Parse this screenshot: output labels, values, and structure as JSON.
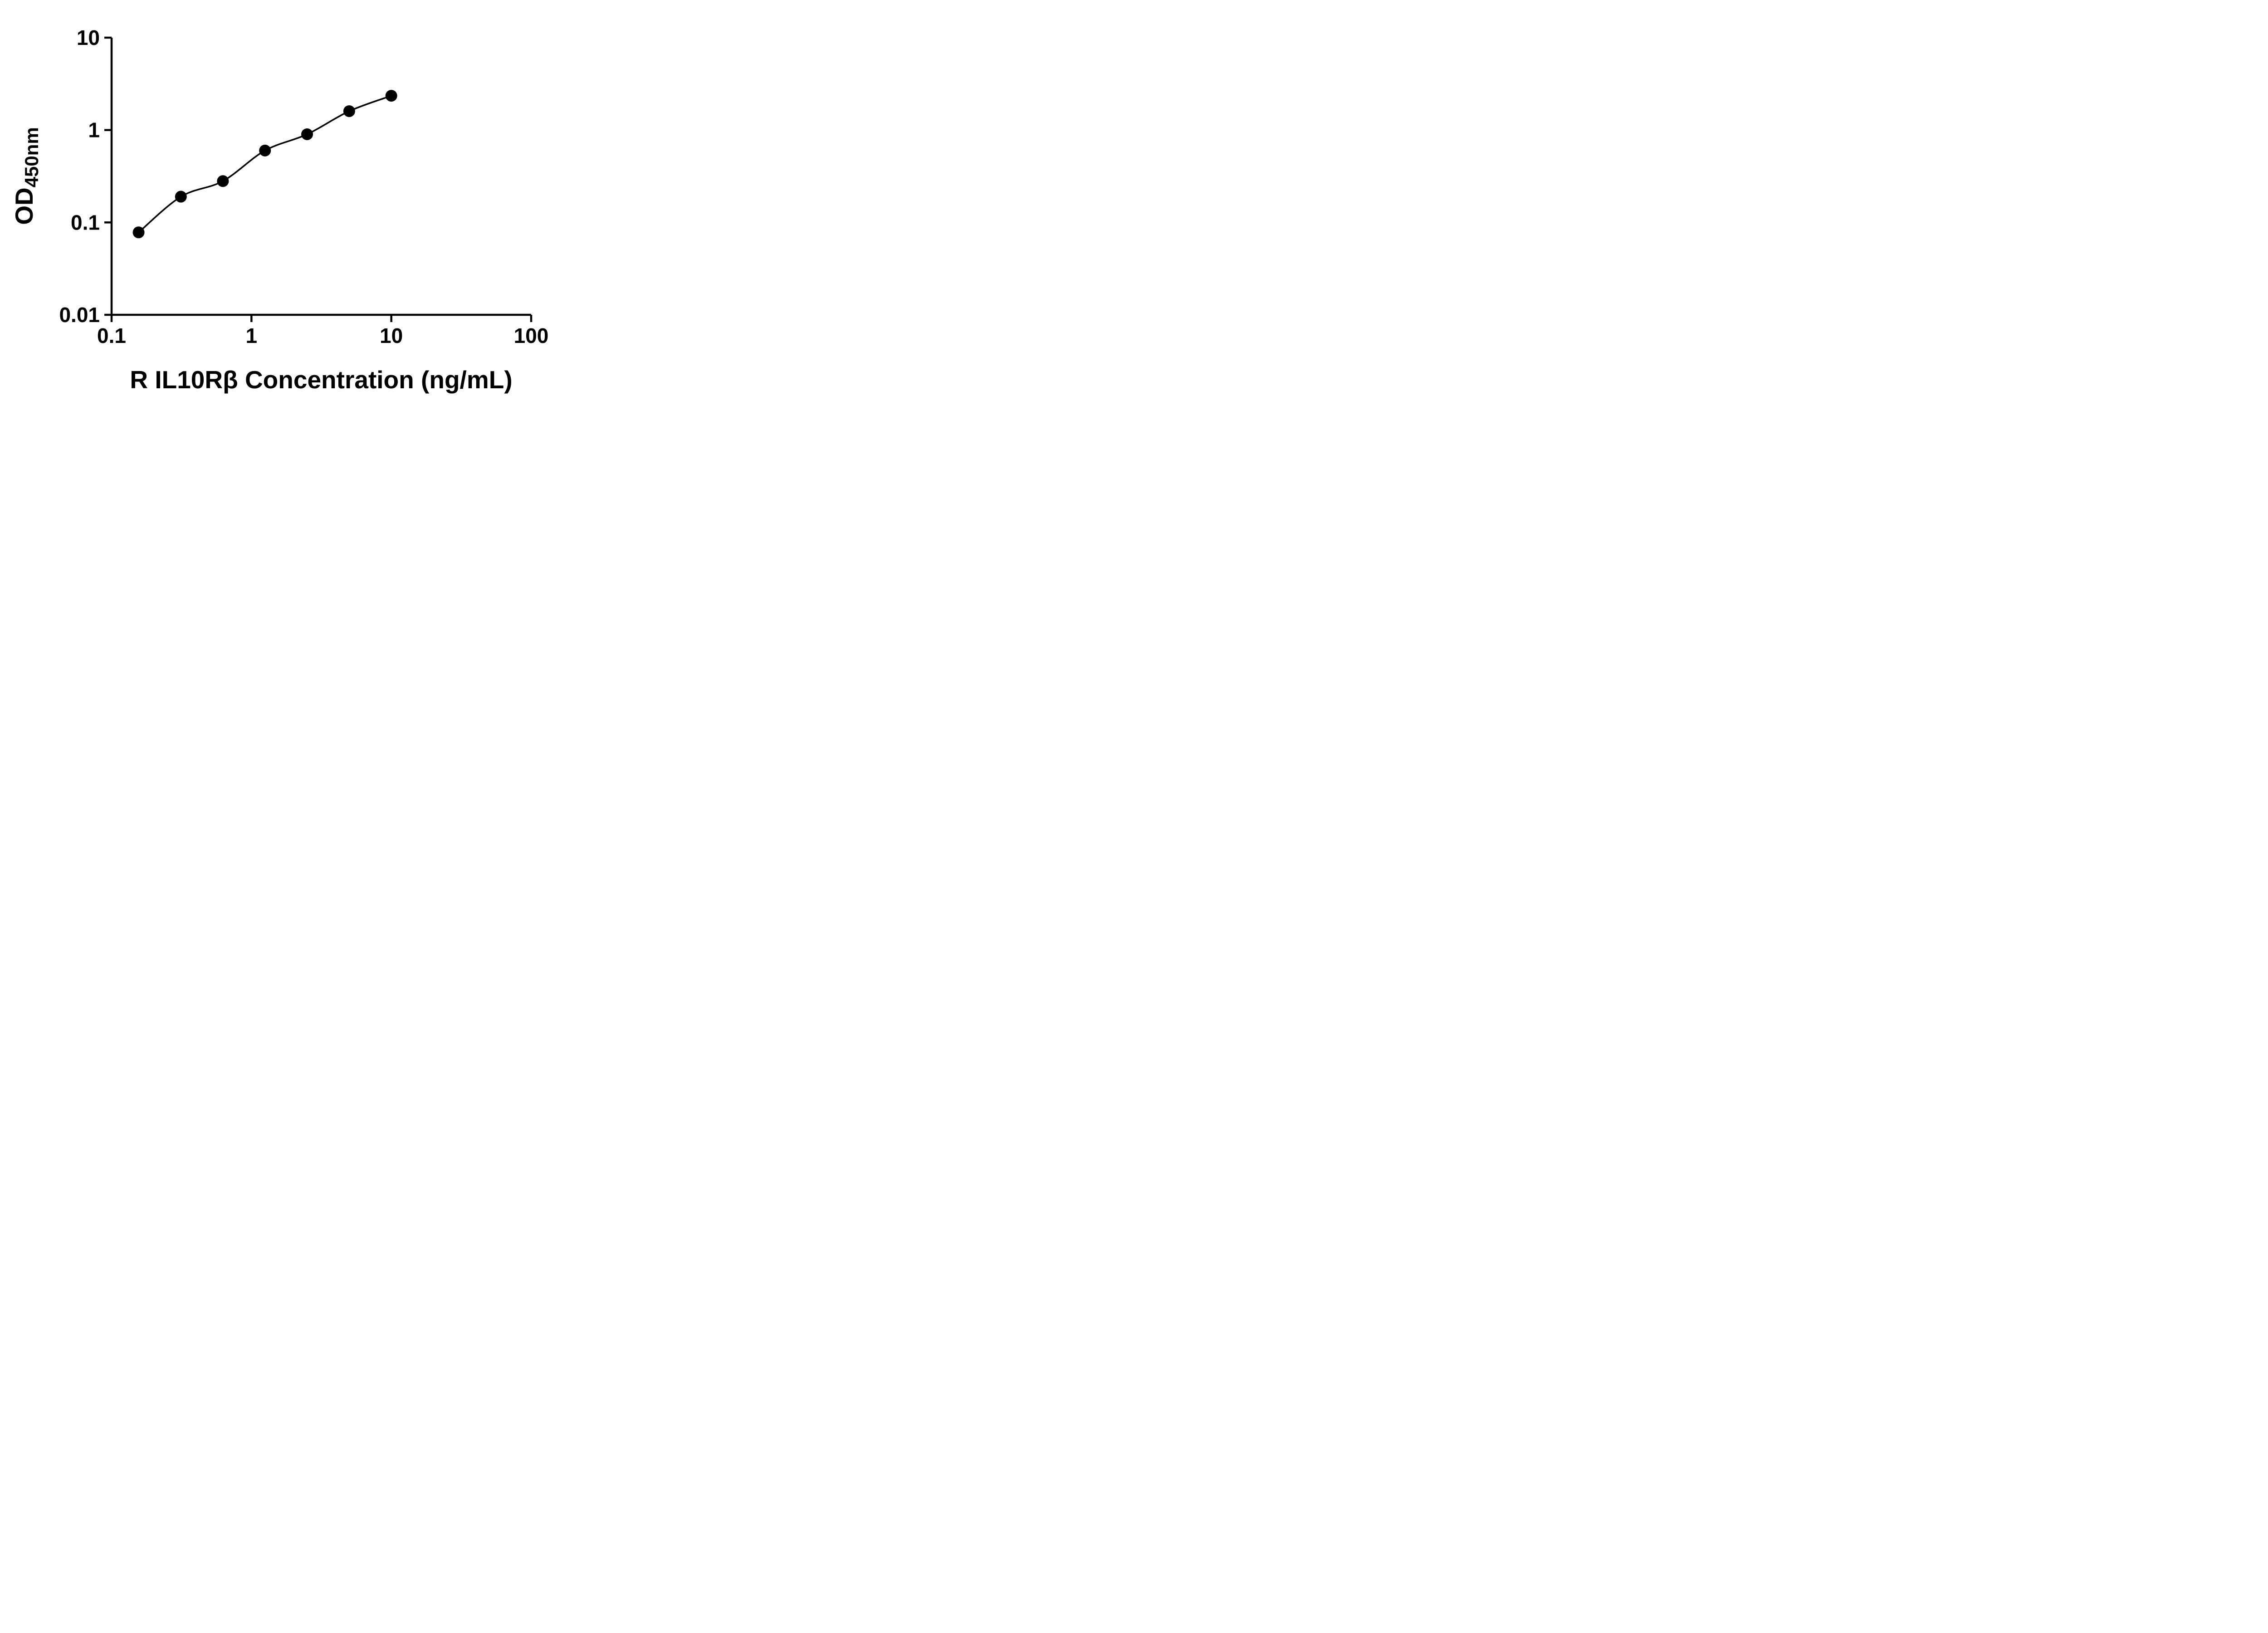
{
  "chart_data": {
    "type": "scatter",
    "title": "",
    "xlabel": "R IL10Rβ Concentration (ng/mL)",
    "ylabel": "OD",
    "ylabel_sub": "450nm",
    "x_scale": "log",
    "y_scale": "log",
    "xlim": [
      0.1,
      100
    ],
    "ylim": [
      0.01,
      10
    ],
    "x_ticks": [
      {
        "value": 0.1,
        "label": "0.1"
      },
      {
        "value": 1,
        "label": "1"
      },
      {
        "value": 10,
        "label": "10"
      },
      {
        "value": 100,
        "label": "100"
      }
    ],
    "y_ticks": [
      {
        "value": 0.01,
        "label": "0.01"
      },
      {
        "value": 0.1,
        "label": "0.1"
      },
      {
        "value": 1,
        "label": "1"
      },
      {
        "value": 10,
        "label": "10"
      }
    ],
    "series": [
      {
        "marker": "filled-circle",
        "color": "#000000",
        "curve": "smooth-fit",
        "points": [
          {
            "x": 0.156,
            "y": 0.078
          },
          {
            "x": 0.313,
            "y": 0.19
          },
          {
            "x": 0.625,
            "y": 0.28
          },
          {
            "x": 1.25,
            "y": 0.6
          },
          {
            "x": 2.5,
            "y": 0.9
          },
          {
            "x": 5,
            "y": 1.6
          },
          {
            "x": 10,
            "y": 2.35
          }
        ]
      }
    ],
    "grid": false,
    "legend": "none",
    "background_color": "#ffffff",
    "axis_color": "#000000"
  }
}
